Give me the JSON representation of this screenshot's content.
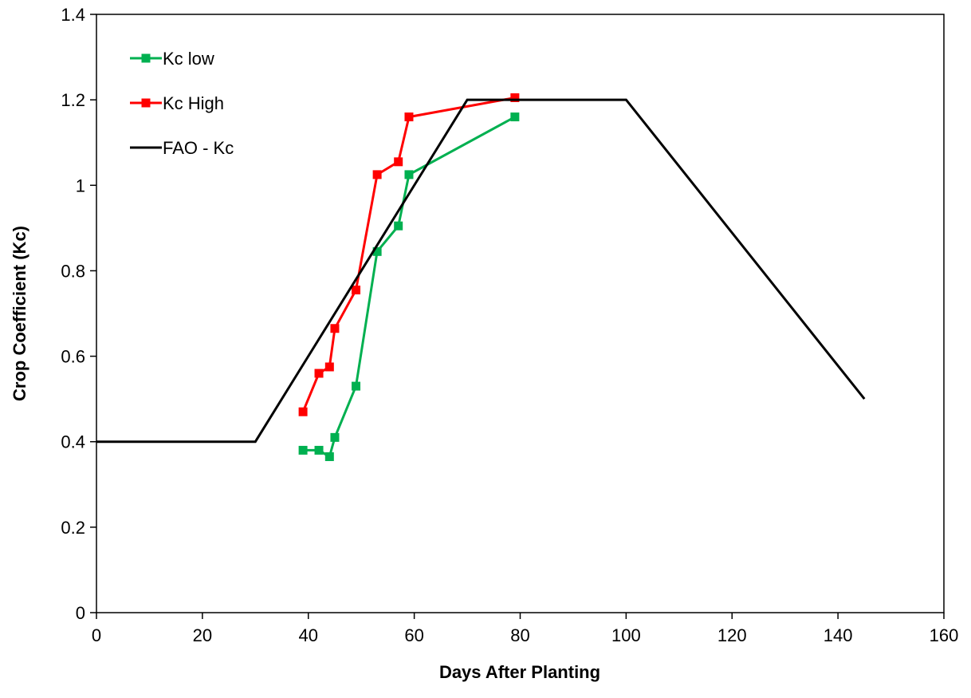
{
  "chart_data": {
    "type": "line",
    "title": "",
    "xlabel": "Days After Planting",
    "ylabel": "Crop Coefficient (Kc)",
    "xlim": [
      0,
      160
    ],
    "ylim": [
      0,
      1.4
    ],
    "xticks": [
      0,
      20,
      40,
      60,
      80,
      100,
      120,
      140,
      160
    ],
    "yticks": [
      0,
      0.2,
      0.4,
      0.6,
      0.8,
      1,
      1.2,
      1.4
    ],
    "xtick_labels": [
      "0",
      "20",
      "40",
      "60",
      "80",
      "100",
      "120",
      "140",
      "160"
    ],
    "ytick_labels": [
      "0",
      "0.2",
      "0.4",
      "0.6",
      "0.8",
      "1",
      "1.2",
      "1.4"
    ],
    "grid": false,
    "legend": {
      "position": "top-left"
    },
    "series": [
      {
        "name": "Kc low",
        "color": "#00b050",
        "marker": "square",
        "x": [
          39,
          42,
          44,
          45,
          49,
          53,
          57,
          59,
          79
        ],
        "y": [
          0.38,
          0.38,
          0.365,
          0.41,
          0.53,
          0.845,
          0.905,
          1.025,
          1.16
        ]
      },
      {
        "name": "Kc High",
        "color": "#ff0000",
        "marker": "square",
        "x": [
          39,
          42,
          44,
          45,
          49,
          53,
          57,
          59,
          79
        ],
        "y": [
          0.47,
          0.56,
          0.575,
          0.665,
          0.755,
          1.025,
          1.055,
          1.16,
          1.205
        ]
      },
      {
        "name": "FAO - Kc",
        "color": "#000000",
        "marker": "none",
        "x": [
          0,
          30,
          70,
          100,
          145
        ],
        "y": [
          0.4,
          0.4,
          1.2,
          1.2,
          0.5
        ]
      }
    ]
  }
}
